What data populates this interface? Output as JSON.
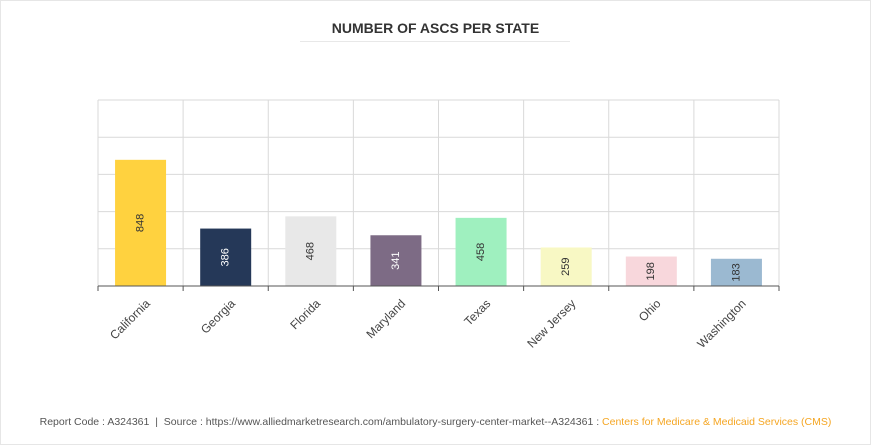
{
  "title": "NUMBER OF ASCS PER STATE",
  "footer": {
    "report_code": "Report Code : A324361",
    "separator": "|",
    "source_prefix": "Source : https://www.alliedmarketresearch.com/ambulatory-surgery-center-market--A324361 :",
    "source_name": "Centers for Medicare & Medicaid Services (CMS)"
  },
  "colors": {
    "highlight": "#f5a623",
    "grid": "#d9d9d9",
    "axis": "#555555"
  },
  "chart_data": {
    "type": "bar",
    "title": "NUMBER OF ASCS PER STATE",
    "xlabel": "",
    "ylabel": "",
    "ylim": [
      0,
      1250
    ],
    "grid": true,
    "legend": "none",
    "categories": [
      "California",
      "Georgia",
      "Florida",
      "Maryland",
      "Texas",
      "New Jersey",
      "Ohio",
      "Washington"
    ],
    "values": [
      848,
      386,
      468,
      341,
      458,
      259,
      198,
      183
    ],
    "bar_colors": [
      "#ffd23f",
      "#253858",
      "#e8e8e8",
      "#7d6b85",
      "#9ff0bf",
      "#f8f8c4",
      "#f8d7dc",
      "#9bb9d1"
    ],
    "label_colors": [
      "#333333",
      "#ffffff",
      "#333333",
      "#ffffff",
      "#333333",
      "#333333",
      "#333333",
      "#333333"
    ]
  }
}
